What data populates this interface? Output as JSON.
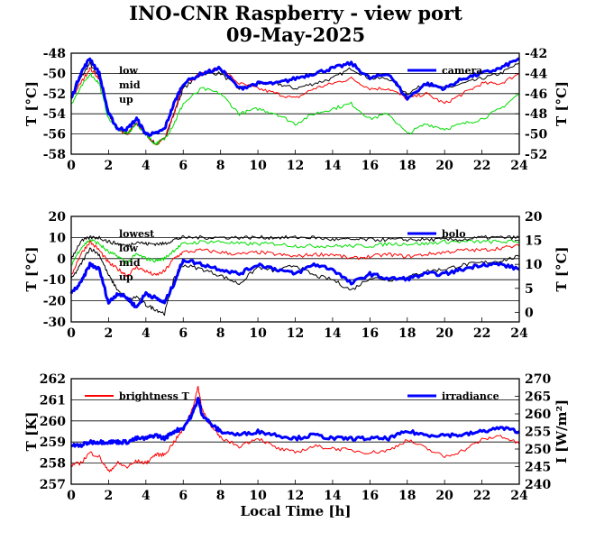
{
  "title": "INO-CNR Raspberry - view port",
  "subtitle": "09-May-2025",
  "xlabel": "Local Time [h]",
  "x_ticks": [
    "0",
    "2",
    "4",
    "6",
    "8",
    "10",
    "12",
    "14",
    "16",
    "18",
    "20",
    "22",
    "24"
  ],
  "colors": {
    "black": "#000000",
    "red": "#ff0000",
    "green": "#00dd00",
    "blue": "#0000ff"
  },
  "chart_data": [
    {
      "type": "line",
      "xlim": [
        0,
        24
      ],
      "ylabel": "T [°C]",
      "ylim": [
        -58,
        -48
      ],
      "y_ticks": [
        "-48",
        "-50",
        "-52",
        "-54",
        "-56",
        "-58"
      ],
      "y2label": "T [°C]",
      "y2lim": [
        -52,
        -42
      ],
      "y2_ticks": [
        "-42",
        "-44",
        "-46",
        "-48",
        "-50",
        "-52"
      ],
      "legend_left": [
        "low",
        "mid",
        "up"
      ],
      "legend_right": "camera",
      "series": [
        {
          "name": "low",
          "color": "black",
          "axis": "y",
          "x": [
            0,
            0.5,
            1,
            1.5,
            2,
            2.5,
            3,
            3.5,
            4,
            4.5,
            5,
            5.5,
            6,
            7,
            8,
            9,
            10,
            11,
            12,
            13,
            14,
            15,
            16,
            17,
            18,
            19,
            20,
            21,
            22,
            23,
            24
          ],
          "values": [
            -52.5,
            -50.5,
            -49,
            -50.5,
            -54,
            -55.5,
            -56,
            -55,
            -56,
            -57,
            -56.5,
            -54,
            -51.5,
            -50,
            -50,
            -51.5,
            -51,
            -51,
            -51.5,
            -51,
            -50.5,
            -49.5,
            -50.5,
            -50.5,
            -52,
            -51,
            -51.5,
            -51,
            -50.5,
            -50,
            -49
          ]
        },
        {
          "name": "mid",
          "color": "red",
          "axis": "y",
          "x": [
            0,
            0.5,
            1,
            1.5,
            2,
            2.5,
            3,
            3.5,
            4,
            4.5,
            5,
            5.5,
            6,
            7,
            8,
            9,
            10,
            11,
            12,
            13,
            14,
            15,
            16,
            17,
            18,
            19,
            20,
            21,
            22,
            23,
            24
          ],
          "values": [
            -52.5,
            -51,
            -49.5,
            -50.5,
            -54,
            -55.5,
            -56,
            -55,
            -56,
            -57,
            -56.5,
            -54,
            -51,
            -50,
            -49.5,
            -51,
            -51.5,
            -52,
            -52.5,
            -51.5,
            -51,
            -50.5,
            -51.5,
            -51.5,
            -52.5,
            -52,
            -53,
            -52,
            -51,
            -51,
            -50
          ]
        },
        {
          "name": "up",
          "color": "green",
          "axis": "y",
          "x": [
            0,
            0.5,
            1,
            1.5,
            2,
            2.5,
            3,
            3.5,
            4,
            4.5,
            5,
            5.5,
            6,
            7,
            8,
            9,
            10,
            11,
            12,
            13,
            14,
            15,
            16,
            17,
            18,
            19,
            20,
            21,
            22,
            23,
            24
          ],
          "values": [
            -53,
            -51.5,
            -50,
            -51,
            -54.5,
            -55.5,
            -56,
            -55,
            -56,
            -57,
            -56.5,
            -55,
            -53,
            -51.5,
            -52,
            -54,
            -53.5,
            -54,
            -55,
            -54,
            -53.5,
            -53,
            -54.5,
            -54,
            -56,
            -55,
            -55.5,
            -55,
            -54.5,
            -53.5,
            -52
          ]
        },
        {
          "name": "camera",
          "color": "blue",
          "axis": "y2",
          "x": [
            0,
            0.5,
            1,
            1.5,
            2,
            2.5,
            3,
            3.5,
            4,
            4.5,
            5,
            5.5,
            6,
            7,
            8,
            9,
            10,
            11,
            12,
            13,
            14,
            15,
            16,
            17,
            18,
            19,
            20,
            21,
            22,
            23,
            24
          ],
          "values": [
            -46.5,
            -44,
            -42.5,
            -44,
            -48,
            -49.5,
            -49.5,
            -48.5,
            -50,
            -50,
            -49.5,
            -47,
            -45,
            -44,
            -43.5,
            -45.5,
            -45,
            -45,
            -44.5,
            -44,
            -43.5,
            -43,
            -44.5,
            -44,
            -46.5,
            -45,
            -45.5,
            -44.5,
            -44,
            -43.5,
            -42.5
          ]
        }
      ]
    },
    {
      "type": "line",
      "xlim": [
        0,
        24
      ],
      "ylabel": "T [°C]",
      "ylim": [
        -30,
        20
      ],
      "y_ticks": [
        "20",
        "10",
        "0",
        "-10",
        "-20",
        "-30"
      ],
      "y2label": "T [°C]",
      "y2lim": [
        -2,
        20
      ],
      "y2_ticks": [
        "20",
        "15",
        "10",
        "5",
        "0"
      ],
      "legend_left": [
        "lowest",
        "low",
        "mid",
        "up"
      ],
      "legend_right": "bolo",
      "series": [
        {
          "name": "lowest",
          "color": "black",
          "axis": "y",
          "x": [
            0,
            0.5,
            1,
            1.5,
            2,
            2.5,
            3,
            3.5,
            4,
            4.5,
            5,
            5.5,
            6,
            7,
            8,
            9,
            10,
            11,
            12,
            13,
            14,
            15,
            16,
            17,
            18,
            19,
            20,
            21,
            22,
            23,
            24
          ],
          "values": [
            -10,
            -3,
            5,
            2,
            -8,
            -15,
            -20,
            -18,
            -22,
            -24,
            -26,
            -10,
            -3,
            -5,
            -8,
            -12,
            -4,
            -6,
            -3,
            -8,
            -10,
            -15,
            -9,
            -10,
            -9,
            -6,
            -5,
            -3,
            -2,
            -1,
            1
          ]
        },
        {
          "name": "low",
          "color": "red",
          "axis": "y",
          "x": [
            0,
            0.5,
            1,
            1.5,
            2,
            2.5,
            3,
            3.5,
            4,
            4.5,
            5,
            5.5,
            6,
            7,
            8,
            9,
            10,
            11,
            12,
            13,
            14,
            15,
            16,
            17,
            18,
            19,
            20,
            21,
            22,
            23,
            24
          ],
          "values": [
            -8,
            2,
            8,
            4,
            -2,
            -5,
            -8,
            -4,
            -6,
            -8,
            -6,
            0,
            3,
            4,
            3,
            2,
            3,
            2,
            1,
            2,
            2,
            0,
            1,
            2,
            1,
            2,
            3,
            4,
            4,
            5,
            6
          ]
        },
        {
          "name": "mid",
          "color": "green",
          "axis": "y",
          "x": [
            0,
            0.5,
            1,
            1.5,
            2,
            2.5,
            3,
            3.5,
            4,
            4.5,
            5,
            5.5,
            6,
            7,
            8,
            9,
            10,
            11,
            12,
            13,
            14,
            15,
            16,
            17,
            18,
            19,
            20,
            21,
            22,
            23,
            24
          ],
          "values": [
            -3,
            5,
            9,
            7,
            3,
            1,
            -2,
            2,
            0,
            -1,
            0,
            4,
            7,
            8,
            8,
            7,
            7,
            7,
            6,
            6,
            6,
            6,
            6,
            7,
            7,
            7,
            8,
            8,
            8,
            8,
            8
          ]
        },
        {
          "name": "up",
          "color": "black",
          "axis": "y",
          "x": [
            0,
            0.5,
            1,
            1.5,
            2,
            2.5,
            3,
            3.5,
            4,
            4.5,
            5,
            5.5,
            6,
            7,
            8,
            9,
            10,
            11,
            12,
            13,
            14,
            15,
            16,
            17,
            18,
            19,
            20,
            21,
            22,
            23,
            24
          ],
          "values": [
            0,
            8,
            10,
            10,
            8,
            7,
            6,
            8,
            7,
            7,
            7,
            9,
            10,
            10,
            10,
            10,
            10,
            10,
            10,
            10,
            9,
            9,
            9,
            9,
            9,
            9,
            9,
            9,
            10,
            10,
            10
          ]
        },
        {
          "name": "bolo",
          "color": "blue",
          "axis": "y2",
          "x": [
            0,
            0.5,
            1,
            1.5,
            2,
            2.5,
            3,
            3.5,
            4,
            4.5,
            5,
            5.5,
            6,
            7,
            8,
            9,
            10,
            11,
            12,
            13,
            14,
            15,
            16,
            17,
            18,
            19,
            20,
            21,
            22,
            23,
            24
          ],
          "values": [
            4,
            6,
            10,
            9,
            2,
            4,
            3,
            1,
            4,
            3,
            2,
            6,
            11,
            10,
            9,
            8,
            10,
            9,
            8,
            10,
            9,
            6,
            8,
            7,
            7,
            8,
            8,
            9,
            10,
            10,
            9
          ]
        }
      ]
    },
    {
      "type": "line",
      "xlim": [
        0,
        24
      ],
      "ylabel": "T [K]",
      "ylim": [
        257,
        262
      ],
      "y_ticks": [
        "262",
        "261",
        "260",
        "259",
        "258",
        "257"
      ],
      "y2label": "I [W/m²]",
      "y2lim": [
        240,
        270
      ],
      "y2_ticks": [
        "270",
        "265",
        "260",
        "255",
        "250",
        "245",
        "240"
      ],
      "legend_left": [
        "brightness T"
      ],
      "legend_right": "irradiance",
      "series": [
        {
          "name": "brightness T",
          "color": "red",
          "axis": "y",
          "x": [
            0,
            0.5,
            1,
            1.5,
            2,
            2.5,
            3,
            3.5,
            4,
            4.5,
            5,
            5.5,
            6,
            6.5,
            6.8,
            7,
            7.5,
            8,
            9,
            10,
            11,
            12,
            13,
            14,
            15,
            16,
            17,
            18,
            19,
            20,
            21,
            22,
            23,
            24
          ],
          "values": [
            257.9,
            258,
            258.5,
            258.3,
            257.6,
            258,
            257.8,
            258.1,
            258,
            258.4,
            258.4,
            259,
            259.6,
            260.6,
            261.6,
            260.6,
            259.7,
            259.2,
            258.8,
            259.2,
            258.7,
            258.5,
            258.8,
            258.7,
            258.6,
            258.5,
            258.6,
            259.1,
            258.7,
            258.3,
            258.6,
            259.1,
            259.3,
            258.9
          ]
        },
        {
          "name": "irradiance",
          "color": "blue",
          "axis": "y2",
          "x": [
            0,
            0.5,
            1,
            1.5,
            2,
            2.5,
            3,
            3.5,
            4,
            4.5,
            5,
            5.5,
            6,
            6.5,
            6.8,
            7,
            7.5,
            8,
            9,
            10,
            11,
            12,
            13,
            14,
            15,
            16,
            17,
            18,
            19,
            20,
            21,
            22,
            23,
            24
          ],
          "values": [
            251,
            251,
            252,
            252,
            252,
            252,
            252,
            253,
            253,
            254,
            253,
            255,
            256,
            260,
            264.5,
            260,
            257,
            255,
            254,
            255,
            254,
            253,
            254,
            253,
            253,
            253,
            253,
            255,
            254,
            254,
            254,
            255,
            256,
            255
          ]
        }
      ]
    }
  ]
}
